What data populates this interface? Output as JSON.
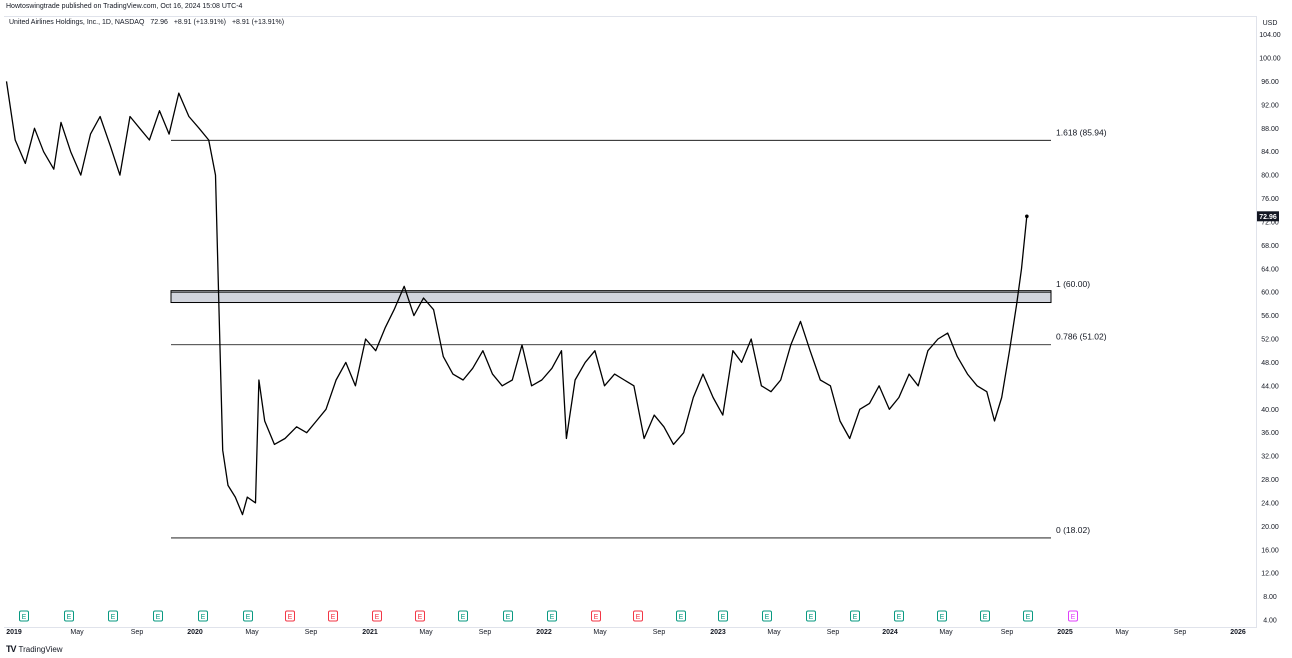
{
  "header": {
    "published": "Howtoswingtrade published on TradingView.com, Oct 16, 2024 15:08 UTC-4"
  },
  "legend": {
    "symbol": "United Airlines Holdings, Inc., 1D, NASDAQ",
    "close": "72.96",
    "change": "+8.91 (+13.91%)",
    "change2": "+8.91 (+13.91%)"
  },
  "axis": {
    "currency": "USD"
  },
  "footer": {
    "brand": "TradingView"
  },
  "colors": {
    "line": "#000000",
    "fib": "#000000",
    "band": "#d1d4dc",
    "earnings_up": "#089981",
    "earnings_down": "#f23645",
    "earnings_future": "#e040fb"
  },
  "chart_data": {
    "type": "line",
    "title": "United Airlines Holdings, Inc., 1D, NASDAQ",
    "ylim": [
      4,
      106
    ],
    "y_ticks": [
      "104.00",
      "100.00",
      "96.00",
      "92.00",
      "88.00",
      "84.00",
      "80.00",
      "76.00",
      "72.00",
      "68.00",
      "64.00",
      "60.00",
      "56.00",
      "52.00",
      "48.00",
      "44.00",
      "40.00",
      "36.00",
      "32.00",
      "28.00",
      "24.00",
      "20.00",
      "16.00",
      "12.00",
      "8.00",
      "4.00"
    ],
    "x_ticks": [
      "2019",
      "May",
      "Sep",
      "2020",
      "May",
      "Sep",
      "2021",
      "May",
      "Sep",
      "2022",
      "May",
      "Sep",
      "2023",
      "May",
      "Sep",
      "2024",
      "May",
      "Sep",
      "2025",
      "May",
      "Sep",
      "2026"
    ],
    "last_price_label": "72.96",
    "fib_levels": [
      {
        "label": "1.618 (85.94)",
        "value": 85.94
      },
      {
        "label": "1 (60.00)",
        "value": 60.0
      },
      {
        "label": "0.786 (51.02)",
        "value": 51.02
      },
      {
        "label": "0 (18.02)",
        "value": 18.02
      }
    ],
    "series": [
      {
        "name": "UAL",
        "x": [
          "2019-01-02",
          "2019-01-20",
          "2019-02-10",
          "2019-03-01",
          "2019-03-20",
          "2019-04-10",
          "2019-04-25",
          "2019-05-15",
          "2019-06-05",
          "2019-06-25",
          "2019-07-15",
          "2019-08-05",
          "2019-08-25",
          "2019-09-15",
          "2019-10-05",
          "2019-10-25",
          "2019-11-15",
          "2019-12-05",
          "2019-12-25",
          "2020-01-15",
          "2020-02-05",
          "2020-02-25",
          "2020-03-10",
          "2020-03-18",
          "2020-03-25",
          "2020-04-05",
          "2020-04-20",
          "2020-05-05",
          "2020-05-15",
          "2020-06-01",
          "2020-06-08",
          "2020-06-20",
          "2020-07-10",
          "2020-08-01",
          "2020-08-25",
          "2020-09-15",
          "2020-10-05",
          "2020-10-25",
          "2020-11-15",
          "2020-12-05",
          "2020-12-25",
          "2021-01-15",
          "2021-02-05",
          "2021-02-25",
          "2021-03-15",
          "2021-04-05",
          "2021-04-25",
          "2021-05-15",
          "2021-06-05",
          "2021-06-25",
          "2021-07-15",
          "2021-08-05",
          "2021-08-25",
          "2021-09-15",
          "2021-10-05",
          "2021-10-25",
          "2021-11-15",
          "2021-12-05",
          "2021-12-25",
          "2022-01-15",
          "2022-02-05",
          "2022-02-25",
          "2022-03-07",
          "2022-03-25",
          "2022-04-15",
          "2022-05-05",
          "2022-05-25",
          "2022-06-15",
          "2022-07-05",
          "2022-07-25",
          "2022-08-15",
          "2022-09-05",
          "2022-09-25",
          "2022-10-15",
          "2022-11-05",
          "2022-11-25",
          "2022-12-15",
          "2023-01-05",
          "2023-01-25",
          "2023-02-15",
          "2023-03-05",
          "2023-03-25",
          "2023-04-15",
          "2023-05-05",
          "2023-05-25",
          "2023-06-15",
          "2023-07-05",
          "2023-07-25",
          "2023-08-15",
          "2023-09-05",
          "2023-09-25",
          "2023-10-15",
          "2023-11-05",
          "2023-11-25",
          "2023-12-15",
          "2024-01-05",
          "2024-01-25",
          "2024-02-15",
          "2024-03-05",
          "2024-03-25",
          "2024-04-15",
          "2024-05-05",
          "2024-05-25",
          "2024-06-15",
          "2024-07-05",
          "2024-07-25",
          "2024-08-10",
          "2024-08-25",
          "2024-09-10",
          "2024-09-25",
          "2024-10-05",
          "2024-10-16"
        ],
        "values": [
          96,
          86,
          82,
          88,
          84,
          81,
          89,
          84,
          80,
          87,
          90,
          85,
          80,
          90,
          88,
          86,
          91,
          87,
          94,
          90,
          88,
          86,
          80,
          55,
          33,
          27,
          25,
          22,
          25,
          24,
          45,
          38,
          34,
          35,
          37,
          36,
          38,
          40,
          45,
          48,
          44,
          52,
          50,
          54,
          57,
          61,
          56,
          59,
          57,
          49,
          46,
          45,
          47,
          50,
          46,
          44,
          45,
          51,
          44,
          45,
          47,
          50,
          35,
          45,
          48,
          50,
          44,
          46,
          45,
          44,
          35,
          39,
          37,
          34,
          36,
          42,
          46,
          42,
          39,
          50,
          48,
          52,
          44,
          43,
          45,
          51,
          55,
          50,
          45,
          44,
          38,
          35,
          40,
          41,
          44,
          40,
          42,
          46,
          44,
          50,
          52,
          53,
          49,
          46,
          44,
          43,
          38,
          42,
          50,
          58,
          64,
          72.96
        ]
      }
    ],
    "earnings_events": [
      {
        "label": "E",
        "type": "up"
      },
      {
        "label": "E",
        "type": "up"
      },
      {
        "label": "E",
        "type": "up"
      },
      {
        "label": "E",
        "type": "up"
      },
      {
        "label": "E",
        "type": "up"
      },
      {
        "label": "E",
        "type": "up"
      },
      {
        "label": "E",
        "type": "down"
      },
      {
        "label": "E",
        "type": "down"
      },
      {
        "label": "E",
        "type": "down"
      },
      {
        "label": "E",
        "type": "down"
      },
      {
        "label": "E",
        "type": "up"
      },
      {
        "label": "E",
        "type": "up"
      },
      {
        "label": "E",
        "type": "up"
      },
      {
        "label": "E",
        "type": "down"
      },
      {
        "label": "E",
        "type": "down"
      },
      {
        "label": "E",
        "type": "up"
      },
      {
        "label": "E",
        "type": "up"
      },
      {
        "label": "E",
        "type": "up"
      },
      {
        "label": "E",
        "type": "up"
      },
      {
        "label": "E",
        "type": "up"
      },
      {
        "label": "E",
        "type": "up"
      },
      {
        "label": "E",
        "type": "up"
      },
      {
        "label": "E",
        "type": "up"
      },
      {
        "label": "E",
        "type": "up"
      },
      {
        "label": "E",
        "type": "future"
      }
    ]
  }
}
